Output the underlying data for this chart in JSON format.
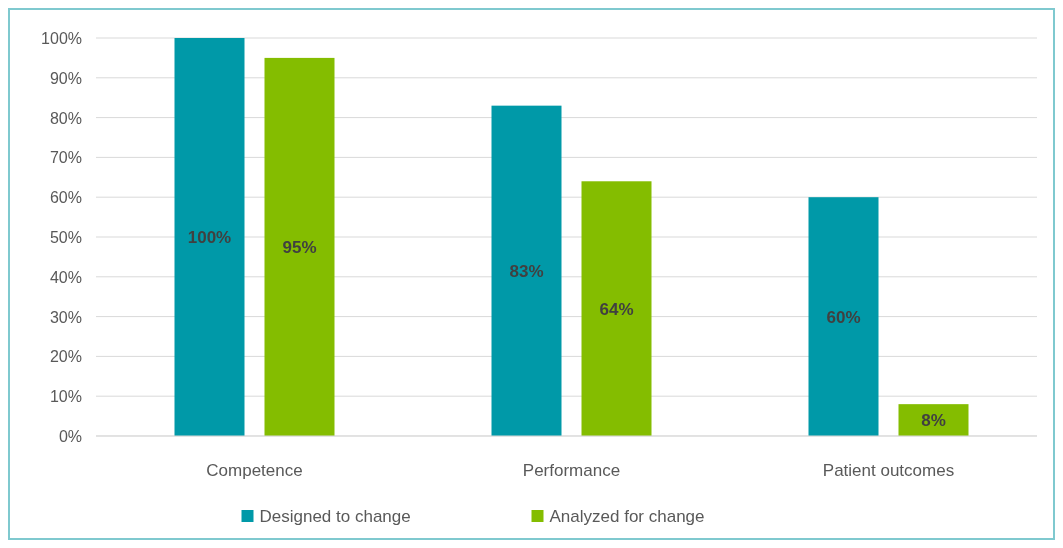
{
  "chart_data": {
    "type": "bar",
    "categories": [
      "Competence",
      "Performance",
      "Patient outcomes"
    ],
    "series": [
      {
        "name": "Designed to change",
        "color": "#0099a8",
        "values": [
          100,
          83,
          60
        ],
        "value_labels": [
          "100%",
          "83%",
          "60%"
        ]
      },
      {
        "name": "Analyzed for change",
        "color": "#84bd00",
        "values": [
          95,
          64,
          8
        ],
        "value_labels": [
          "95%",
          "64%",
          "8%"
        ]
      }
    ],
    "ylim": [
      0,
      100
    ],
    "yticks": [
      {
        "value": 0,
        "label": "0%"
      },
      {
        "value": 10,
        "label": "10%"
      },
      {
        "value": 20,
        "label": "20%"
      },
      {
        "value": 30,
        "label": "30%"
      },
      {
        "value": 40,
        "label": "40%"
      },
      {
        "value": 50,
        "label": "50%"
      },
      {
        "value": 60,
        "label": "60%"
      },
      {
        "value": 70,
        "label": "70%"
      },
      {
        "value": 80,
        "label": "80%"
      },
      {
        "value": 90,
        "label": "90%"
      },
      {
        "value": 100,
        "label": "100%"
      }
    ],
    "grid": "y",
    "legend": "bottom"
  }
}
